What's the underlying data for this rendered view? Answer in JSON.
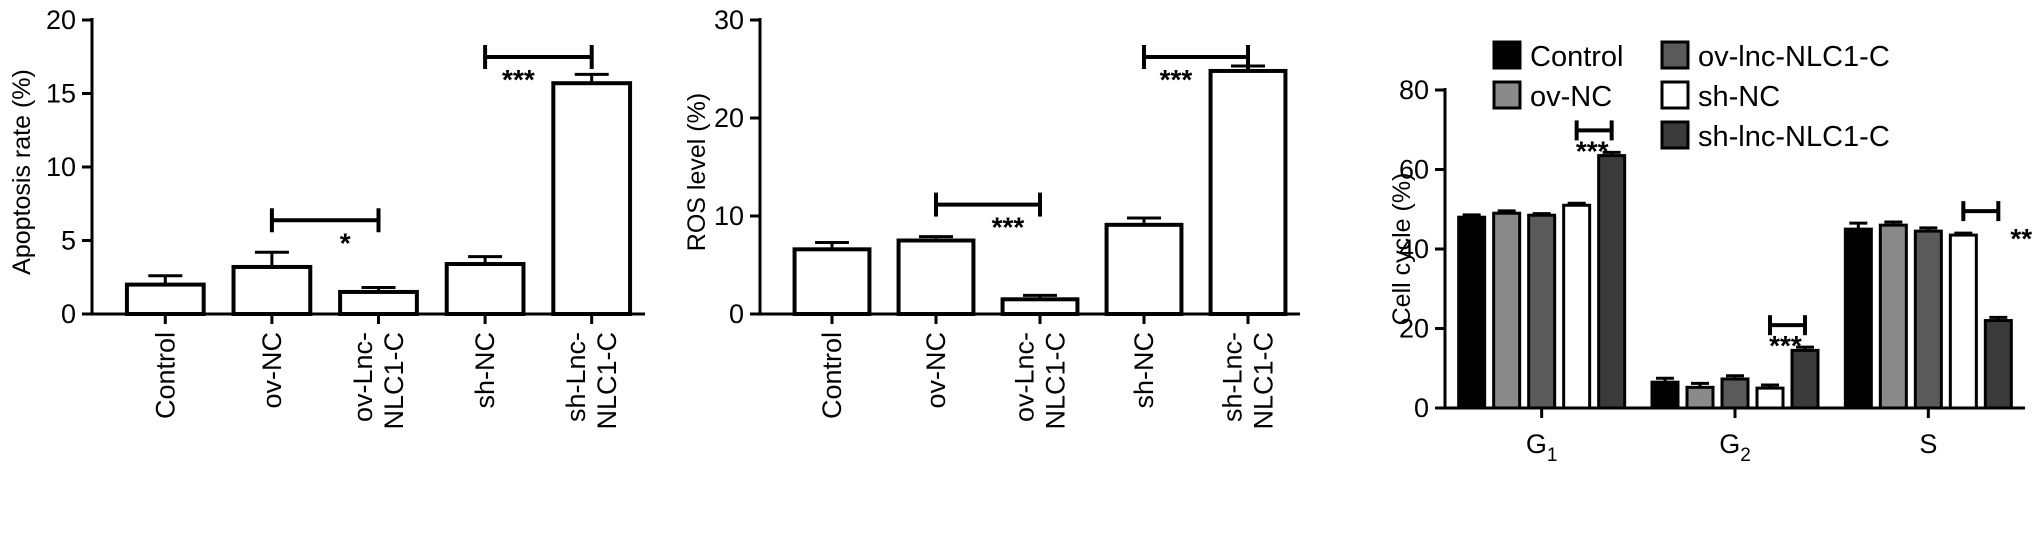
{
  "chart_data": [
    {
      "type": "bar",
      "ylabel": "Apoptosis rate (%)",
      "ylim": [
        0,
        20
      ],
      "yticks": [
        0,
        5,
        10,
        15,
        20
      ],
      "categories": [
        [
          "Control"
        ],
        [
          "ov-NC"
        ],
        [
          "ov-Lnc-",
          "NLC1-C"
        ],
        [
          "sh-NC"
        ],
        [
          "sh-Lnc-",
          "NLC1-C"
        ]
      ],
      "values": [
        2.0,
        3.2,
        1.5,
        3.4,
        15.7
      ],
      "errors": [
        0.6,
        1.0,
        0.3,
        0.5,
        0.6
      ],
      "bar_color": "#ffffff",
      "significance": [
        {
          "from": 1,
          "to": 2,
          "label": "*"
        },
        {
          "from": 3,
          "to": 4,
          "label": "***"
        }
      ]
    },
    {
      "type": "bar",
      "ylabel": "ROS level (%)",
      "ylim": [
        0,
        30
      ],
      "yticks": [
        0,
        10,
        20,
        30
      ],
      "categories": [
        [
          "Control"
        ],
        [
          "ov-NC"
        ],
        [
          "ov-Lnc-",
          "NLC1-C"
        ],
        [
          "sh-NC"
        ],
        [
          "sh-Lnc-",
          "NLC1-C"
        ]
      ],
      "values": [
        6.6,
        7.5,
        1.5,
        9.1,
        24.8
      ],
      "errors": [
        0.7,
        0.4,
        0.4,
        0.7,
        0.5
      ],
      "bar_color": "#ffffff",
      "significance": [
        {
          "from": 1,
          "to": 2,
          "label": "***"
        },
        {
          "from": 3,
          "to": 4,
          "label": "***"
        }
      ]
    },
    {
      "type": "bar",
      "ylabel": "Cell cycle (%)",
      "ylim": [
        0,
        80
      ],
      "yticks": [
        0,
        20,
        40,
        60,
        80
      ],
      "categories": [
        "G1",
        "G2",
        "S"
      ],
      "series": [
        {
          "name": "Control",
          "color": "#000000",
          "values": [
            48,
            6.5,
            45
          ],
          "errors": [
            0.6,
            1.0,
            1.5
          ]
        },
        {
          "name": "ov-NC",
          "color": "#8a8a8a",
          "values": [
            49,
            5.2,
            46
          ],
          "errors": [
            0.6,
            1.0,
            0.8
          ]
        },
        {
          "name": "ov-lnc-NLC1-C",
          "color": "#5a5a5a",
          "values": [
            48.5,
            7.3,
            44.5
          ],
          "errors": [
            0.4,
            0.8,
            0.8
          ]
        },
        {
          "name": "sh-NC",
          "color": "#ffffff",
          "values": [
            51,
            5.0,
            43.5
          ],
          "errors": [
            0.5,
            0.8,
            0.5
          ]
        },
        {
          "name": "sh-lnc-NLC1-C",
          "color": "#3a3a3a",
          "values": [
            63.5,
            14.5,
            22
          ],
          "errors": [
            0.8,
            0.8,
            0.8
          ]
        }
      ],
      "significance": [
        {
          "group": 0,
          "label": "***"
        },
        {
          "group": 1,
          "label": "***"
        },
        {
          "group": 2,
          "label": "***"
        }
      ]
    }
  ]
}
